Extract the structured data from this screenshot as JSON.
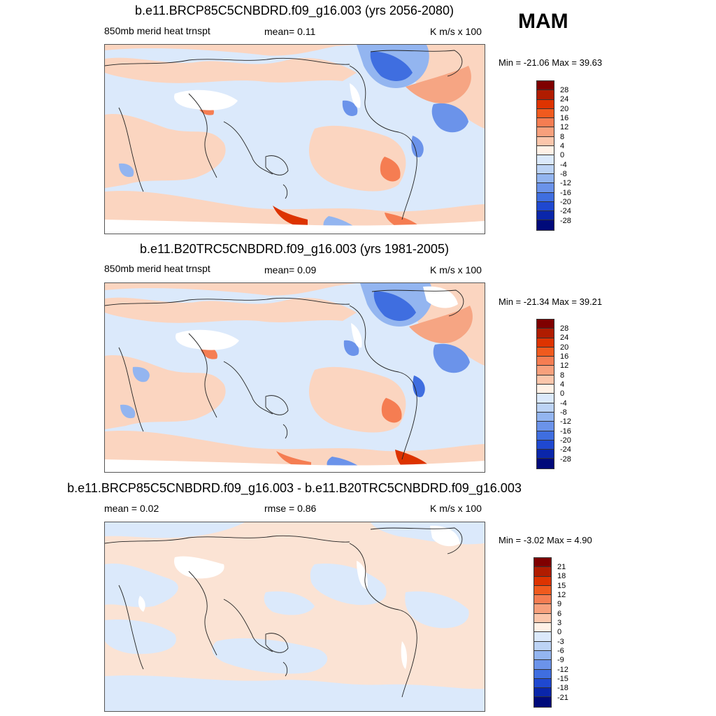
{
  "season": "MAM",
  "panels": [
    {
      "title": "b.e11.BRCP85C5CNBDRD.f09_g16.003 (yrs 2056-2080)",
      "left_label": "850mb merid heat trnspt",
      "mid_label": "mean=   0.11",
      "right_label": "K m/s x 100",
      "minmax": "Min = -21.06 Max =  39.63",
      "cbar_labels": [
        "28",
        "24",
        "20",
        "16",
        "12",
        "8",
        "4",
        "0",
        "-4",
        "-8",
        "-12",
        "-16",
        "-20",
        "-24",
        "-28"
      ]
    },
    {
      "title": "b.e11.B20TRC5CNBDRD.f09_g16.003 (yrs 1981-2005)",
      "left_label": "850mb merid heat trnspt",
      "mid_label": "mean=   0.09",
      "right_label": "K m/s x 100",
      "minmax": "Min = -21.34 Max =  39.21",
      "cbar_labels": [
        "28",
        "24",
        "20",
        "16",
        "12",
        "8",
        "4",
        "0",
        "-4",
        "-8",
        "-12",
        "-16",
        "-20",
        "-24",
        "-28"
      ]
    },
    {
      "title": "b.e11.BRCP85C5CNBDRD.f09_g16.003 - b.e11.B20TRC5CNBDRD.f09_g16.003",
      "left_label": "mean =   0.02",
      "mid_label": "rmse =   0.86",
      "right_label": "K m/s x 100",
      "minmax": "Min =  -3.02 Max =   4.90",
      "cbar_labels": [
        "21",
        "18",
        "15",
        "12",
        "9",
        "6",
        "3",
        "0",
        "-3",
        "-6",
        "-9",
        "-12",
        "-15",
        "-18",
        "-21"
      ]
    }
  ],
  "cbar_colors": [
    "#7f0000",
    "#b01c00",
    "#dd3300",
    "#f05a1e",
    "#f57d52",
    "#f7a07c",
    "#fbc6ab",
    "#fff1e6",
    "#dbe9fb",
    "#bcd3f5",
    "#93b5f0",
    "#6b93ea",
    "#3f6ee0",
    "#1f48d0",
    "#0a26aa",
    "#000a7a"
  ]
}
